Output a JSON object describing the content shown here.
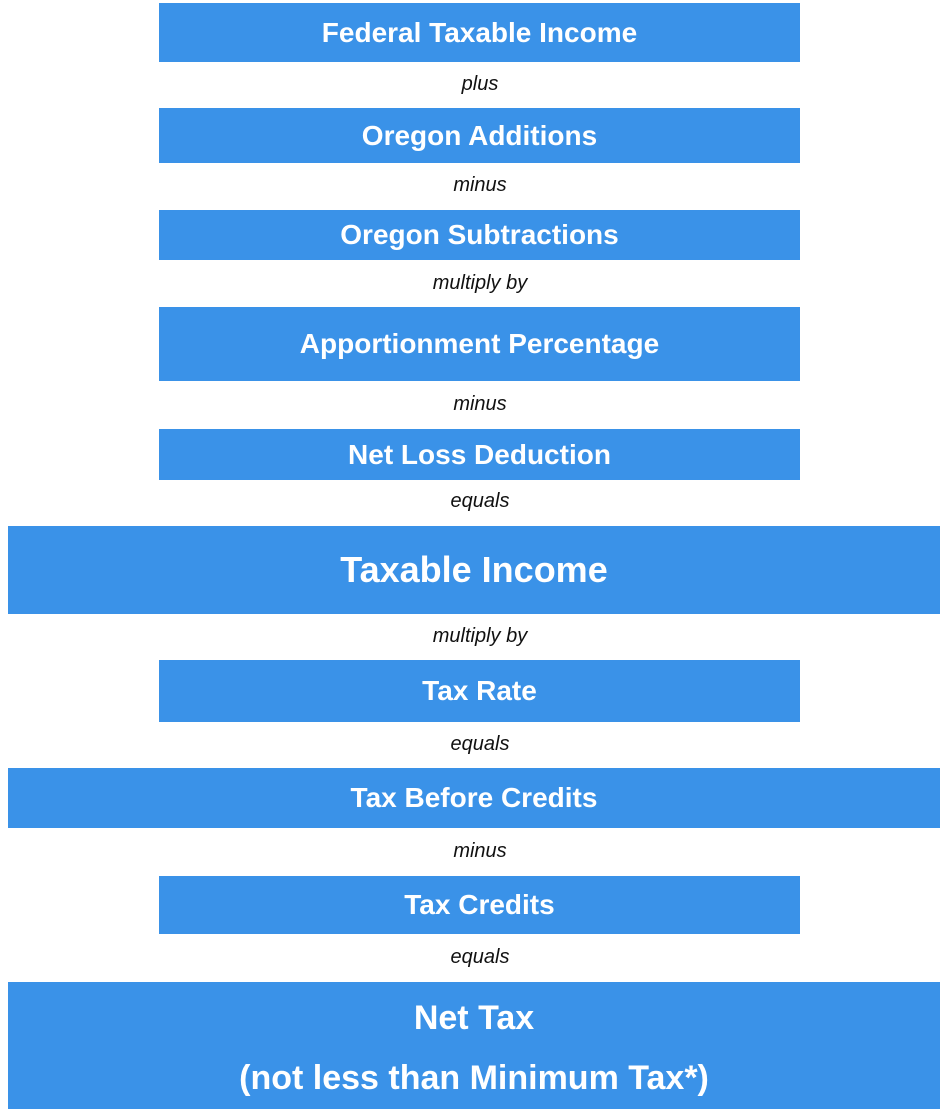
{
  "nodes": [
    {
      "label": "Federal Taxable Income"
    },
    {
      "label": "Oregon Additions"
    },
    {
      "label": "Oregon Subtractions"
    },
    {
      "label": "Apportionment Percentage"
    },
    {
      "label": "Net Loss Deduction"
    },
    {
      "label": "Taxable Income"
    },
    {
      "label": "Tax Rate"
    },
    {
      "label": "Tax Before Credits"
    },
    {
      "label": "Tax Credits"
    },
    {
      "lines": [
        "Net Tax",
        "(not less than Minimum Tax*)"
      ]
    }
  ],
  "connectors": [
    "plus",
    "minus",
    "multiply by",
    "minus",
    "equals",
    "multiply by",
    "equals",
    "minus",
    "equals"
  ]
}
